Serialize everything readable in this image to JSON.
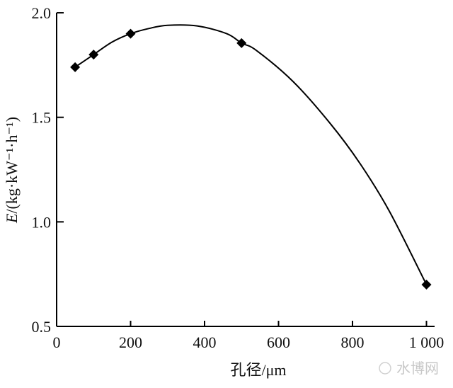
{
  "chart_data": {
    "type": "line",
    "xlabel": "孔径/μm",
    "ylabel_italic": "E",
    "ylabel_rest": "/(kg·kW⁻¹·h⁻¹)",
    "xlim": [
      0,
      1050
    ],
    "ylim": [
      0.5,
      2.0
    ],
    "x_ticks": [
      0,
      200,
      400,
      600,
      800,
      1000
    ],
    "x_tick_labels": [
      "0",
      "200",
      "400",
      "600",
      "800",
      "1 000"
    ],
    "y_ticks": [
      0.5,
      1.0,
      1.5,
      2.0
    ],
    "y_tick_labels": [
      "0.5",
      "1.0",
      "1.5",
      "2.0"
    ],
    "grid": false,
    "series": [
      {
        "marker": "diamond",
        "color": "#000000",
        "x": [
          50,
          100,
          200,
          500,
          1000
        ],
        "y": [
          1.74,
          1.8,
          1.9,
          1.855,
          0.7
        ]
      }
    ],
    "fit_curve": {
      "color": "#000000",
      "x": [
        50,
        100,
        150,
        200,
        250,
        300,
        380,
        460,
        500,
        540,
        640,
        740,
        820,
        900,
        1000
      ],
      "y": [
        1.74,
        1.8,
        1.86,
        1.9,
        1.925,
        1.94,
        1.937,
        1.9,
        1.855,
        1.82,
        1.67,
        1.47,
        1.28,
        1.05,
        0.7
      ]
    }
  },
  "watermark": "水博网"
}
